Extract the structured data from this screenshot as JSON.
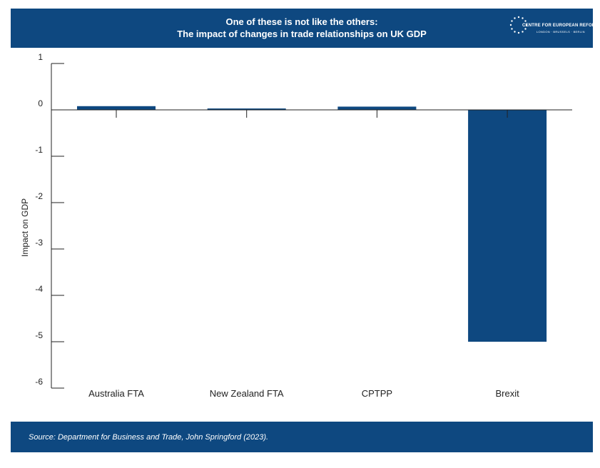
{
  "header": {
    "title_line1": "One of these is not like the others:",
    "title_line2": "The impact of changes in trade relationships on UK GDP",
    "logo_name": "CENTRE FOR EUROPEAN REFORM",
    "logo_cities": "LONDON · BRUSSELS · BERLIN"
  },
  "footer": {
    "source": "Source: Department for Business and Trade, John Springford (2023)."
  },
  "colors": {
    "brand": "#0e4880",
    "bar": "#0e4880"
  },
  "chart_data": {
    "type": "bar",
    "title": "",
    "xlabel": "",
    "ylabel": "Impact on GDP",
    "categories": [
      "Australia FTA",
      "New Zealand FTA",
      "CPTPP",
      "Brexit"
    ],
    "values": [
      0.08,
      0.03,
      0.07,
      -5.0
    ],
    "ylim": [
      -6,
      1
    ],
    "yticks": [
      1,
      0,
      -1,
      -2,
      -3,
      -4,
      -5,
      -6
    ],
    "ytick_labels": [
      "1",
      "0",
      "-1",
      "-2",
      "-3",
      "-4",
      "-5",
      "-6"
    ],
    "grid": false,
    "legend": "none"
  }
}
